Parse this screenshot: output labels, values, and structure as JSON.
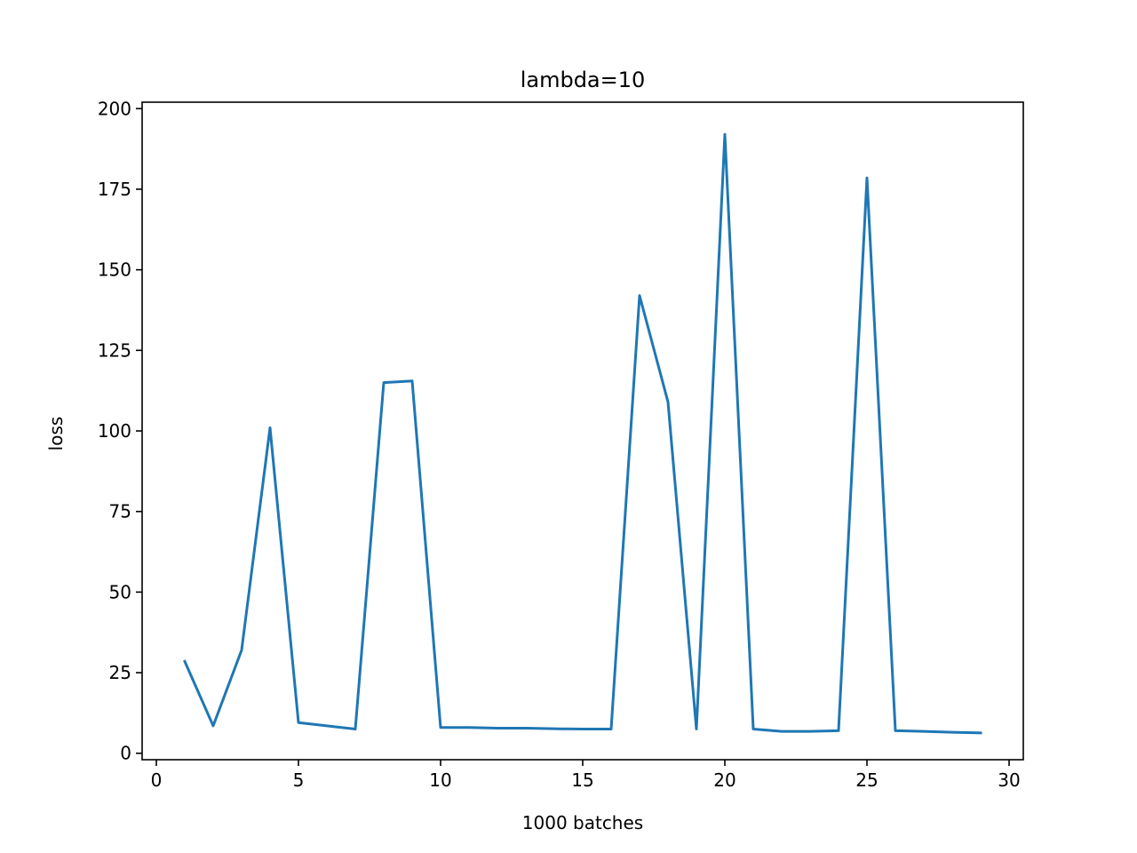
{
  "chart_data": {
    "type": "line",
    "title": "lambda=10",
    "xlabel": "1000 batches",
    "ylabel": "loss",
    "xlim": [
      -0.5,
      30.5
    ],
    "ylim": [
      -2,
      202
    ],
    "xticks": [
      0,
      5,
      10,
      15,
      20,
      25,
      30
    ],
    "yticks": [
      0,
      25,
      50,
      75,
      100,
      125,
      150,
      175,
      200
    ],
    "grid": false,
    "series": [
      {
        "color": "#1f77b4",
        "x": [
          1,
          2,
          3,
          4,
          5,
          6,
          7,
          8,
          9,
          10,
          11,
          12,
          13,
          14,
          15,
          16,
          17,
          18,
          19,
          20,
          21,
          22,
          23,
          24,
          25,
          26,
          27,
          28,
          29
        ],
        "y": [
          28.5,
          8.5,
          32,
          101,
          9.5,
          8.5,
          7.5,
          115,
          115.5,
          8,
          8,
          7.8,
          7.8,
          7.6,
          7.5,
          7.5,
          142,
          109,
          7.5,
          192,
          7.5,
          6.8,
          6.8,
          7,
          178.5,
          7,
          6.8,
          6.5,
          6.3
        ]
      }
    ]
  }
}
